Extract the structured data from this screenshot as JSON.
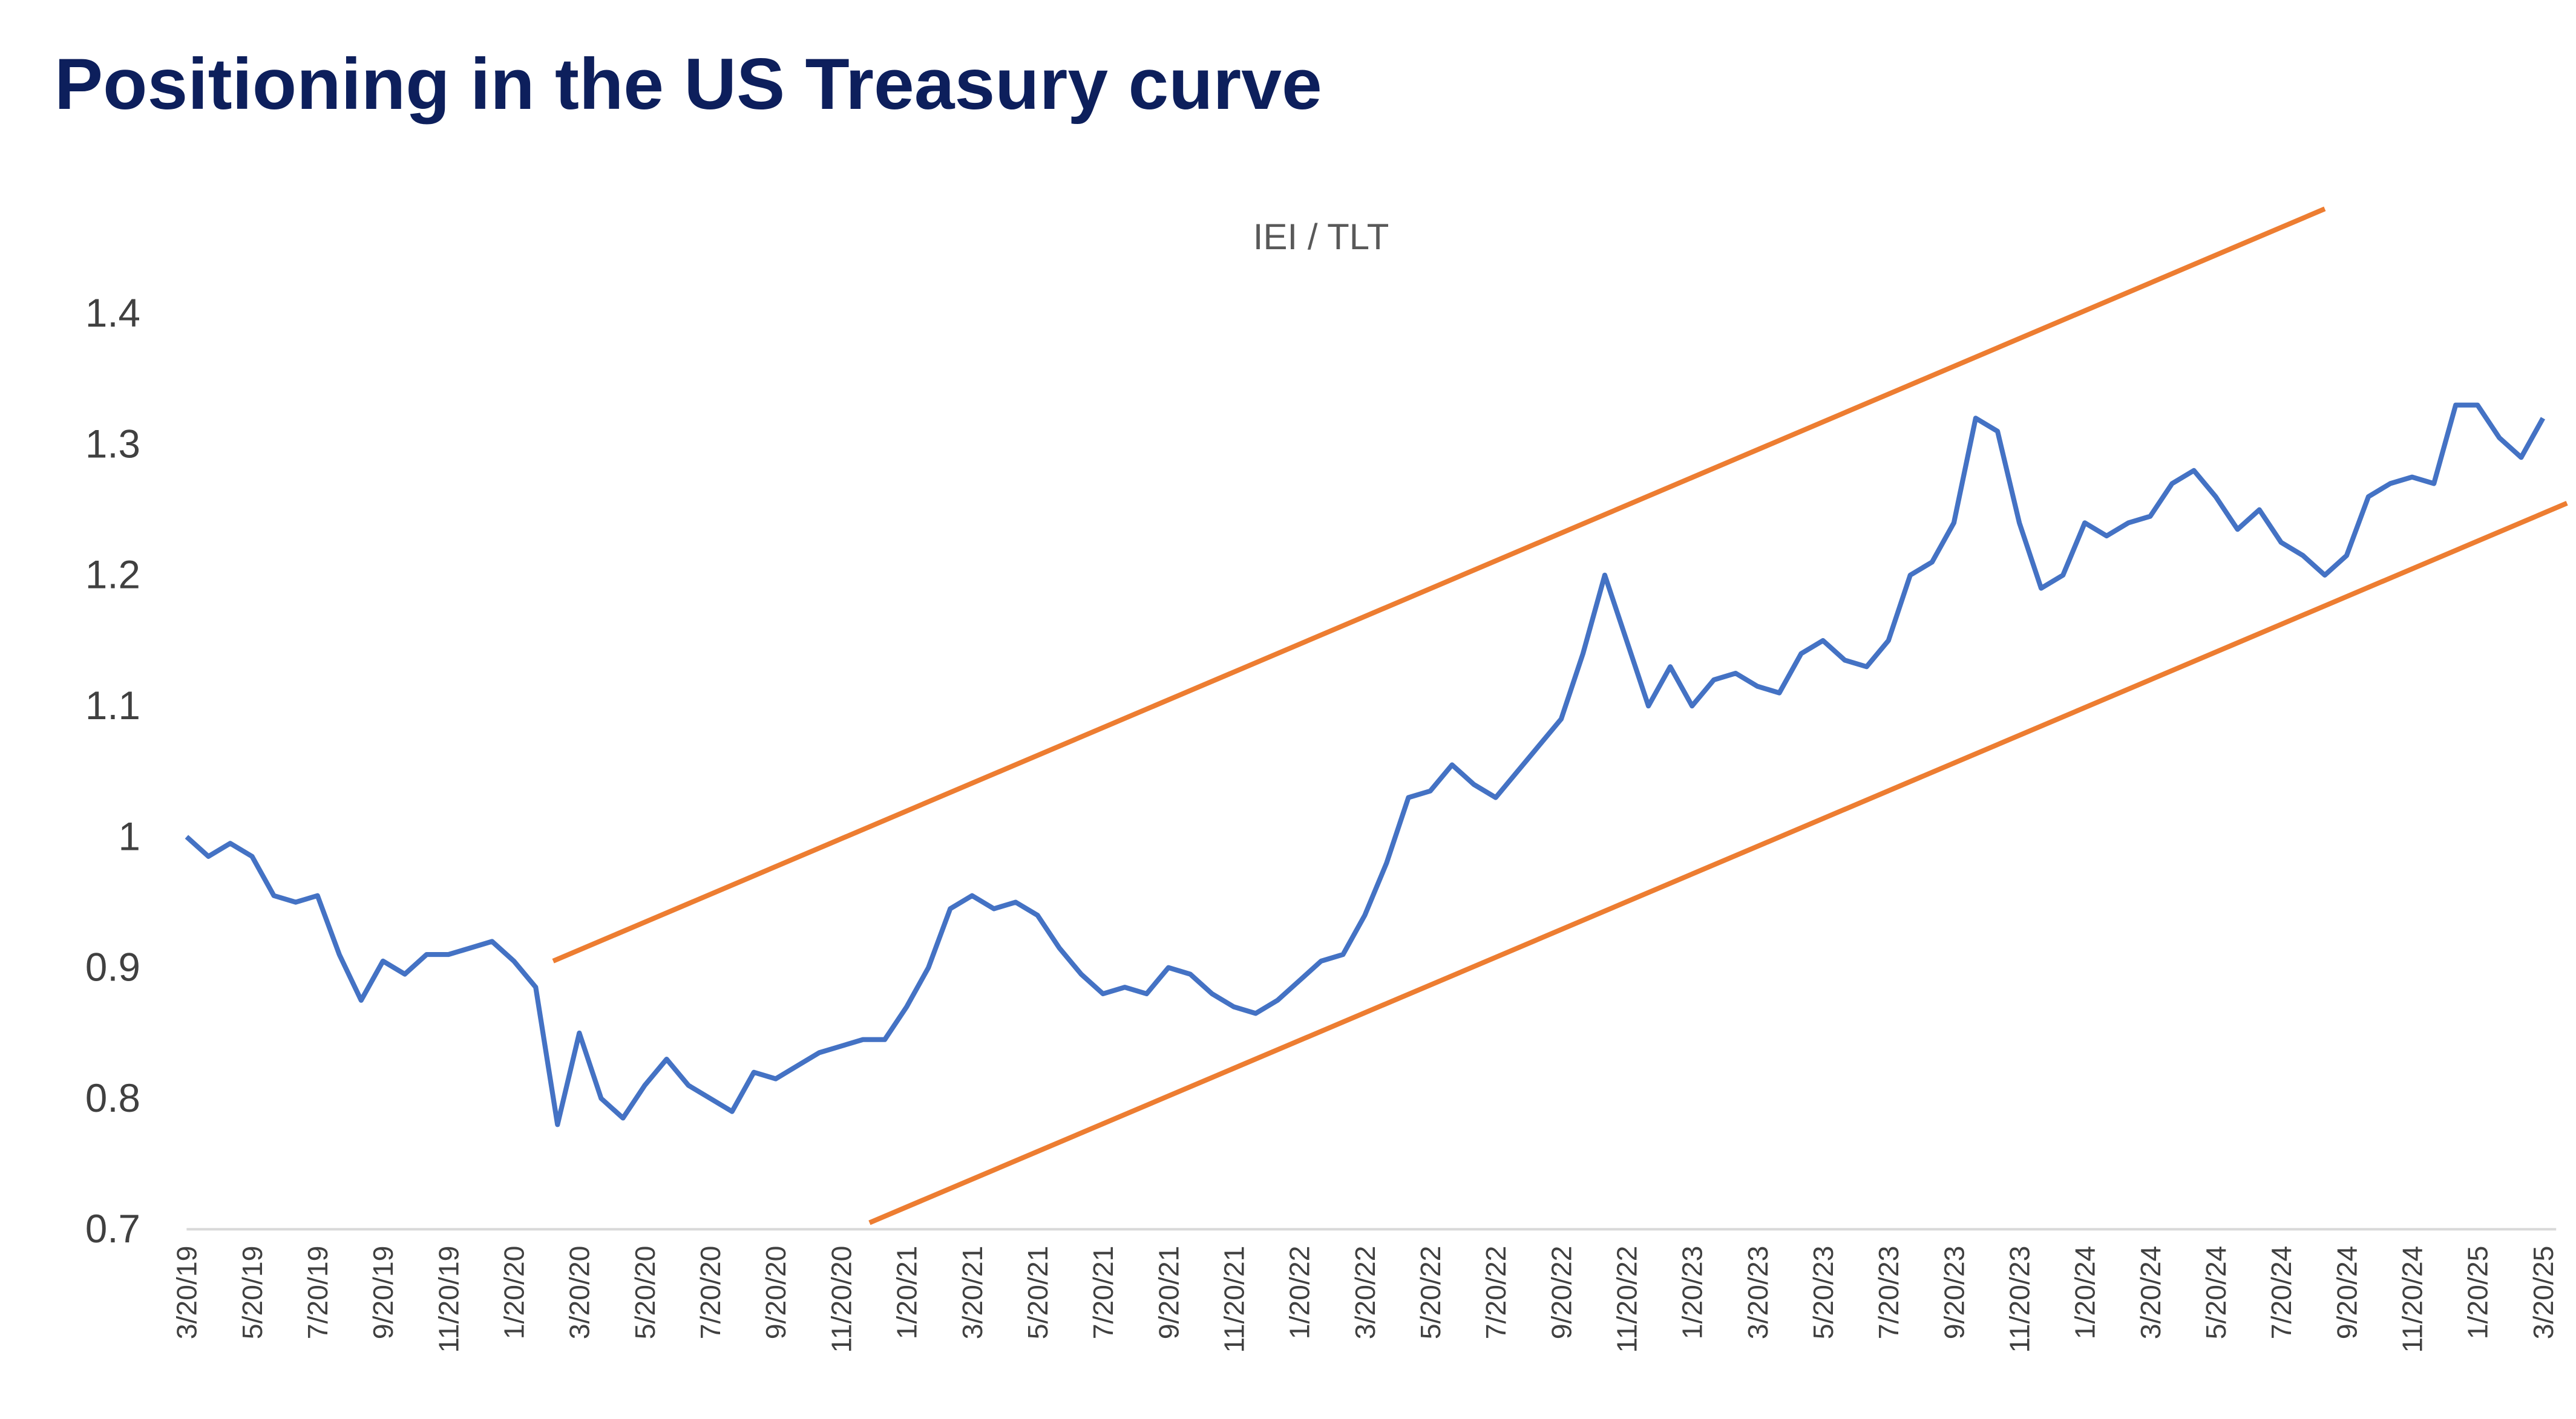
{
  "chart_data": {
    "type": "line",
    "title": "Positioning in the US Treasury curve",
    "subtitle": "IEI / TLT",
    "categories": [
      "3/20/19",
      null,
      null,
      "5/20/19",
      null,
      null,
      "7/20/19",
      null,
      null,
      "9/20/19",
      null,
      null,
      "11/20/19",
      null,
      null,
      "1/20/20",
      null,
      null,
      "3/20/20",
      null,
      null,
      "5/20/20",
      null,
      null,
      "7/20/20",
      null,
      null,
      "9/20/20",
      null,
      null,
      "11/20/20",
      null,
      null,
      "1/20/21",
      null,
      null,
      "3/20/21",
      null,
      null,
      "5/20/21",
      null,
      null,
      "7/20/21",
      null,
      null,
      "9/20/21",
      null,
      null,
      "11/20/21",
      null,
      null,
      "1/20/22",
      null,
      null,
      "3/20/22",
      null,
      null,
      "5/20/22",
      null,
      null,
      "7/20/22",
      null,
      null,
      "9/20/22",
      null,
      null,
      "11/20/22",
      null,
      null,
      "1/20/23",
      null,
      null,
      "3/20/23",
      null,
      null,
      "5/20/23",
      null,
      null,
      "7/20/23",
      null,
      null,
      "9/20/23",
      null,
      null,
      "11/20/23",
      null,
      null,
      "1/20/24",
      null,
      null,
      "3/20/24",
      null,
      null,
      "5/20/24",
      null,
      null,
      "7/20/24",
      null,
      null,
      "9/20/24",
      null,
      null,
      "11/20/24",
      null,
      null,
      "1/20/25",
      null,
      null,
      "3/20/25"
    ],
    "series": [
      {
        "name": "IEI / TLT",
        "color": "#4472c4",
        "values": [
          1.0,
          0.985,
          0.995,
          0.985,
          0.955,
          0.95,
          0.955,
          0.91,
          0.875,
          0.905,
          0.895,
          0.91,
          0.91,
          0.915,
          0.92,
          0.905,
          0.885,
          0.78,
          0.85,
          0.8,
          0.785,
          0.81,
          0.83,
          0.81,
          0.8,
          0.79,
          0.82,
          0.815,
          0.825,
          0.835,
          0.84,
          0.845,
          0.845,
          0.87,
          0.9,
          0.945,
          0.955,
          0.945,
          0.95,
          0.94,
          0.915,
          0.895,
          0.88,
          0.885,
          0.88,
          0.9,
          0.895,
          0.88,
          0.87,
          0.865,
          0.875,
          0.89,
          0.905,
          0.91,
          0.94,
          0.98,
          1.03,
          1.035,
          1.055,
          1.04,
          1.03,
          1.05,
          1.07,
          1.09,
          1.14,
          1.2,
          1.15,
          1.1,
          1.13,
          1.1,
          1.12,
          1.125,
          1.115,
          1.11,
          1.14,
          1.15,
          1.135,
          1.13,
          1.15,
          1.2,
          1.21,
          1.24,
          1.32,
          1.31,
          1.24,
          1.19,
          1.2,
          1.24,
          1.23,
          1.24,
          1.245,
          1.27,
          1.28,
          1.26,
          1.235,
          1.25,
          1.225,
          1.215,
          1.2,
          1.215,
          1.26,
          1.27,
          1.275,
          1.27,
          1.33,
          1.33,
          1.305,
          1.29,
          1.32
        ]
      }
    ],
    "trendlines": [
      {
        "color": "#ed7d31",
        "x": [
          16.8,
          98.0
        ],
        "y": [
          0.905,
          1.48
        ]
      },
      {
        "color": "#ed7d31",
        "x": [
          31.3,
          109.1
        ],
        "y": [
          0.705,
          1.255
        ]
      }
    ],
    "ylim": [
      0.7,
      1.4
    ],
    "yticks": [
      0.7,
      0.8,
      0.9,
      1,
      1.1,
      1.2,
      1.3,
      1.4
    ],
    "grid": false
  }
}
